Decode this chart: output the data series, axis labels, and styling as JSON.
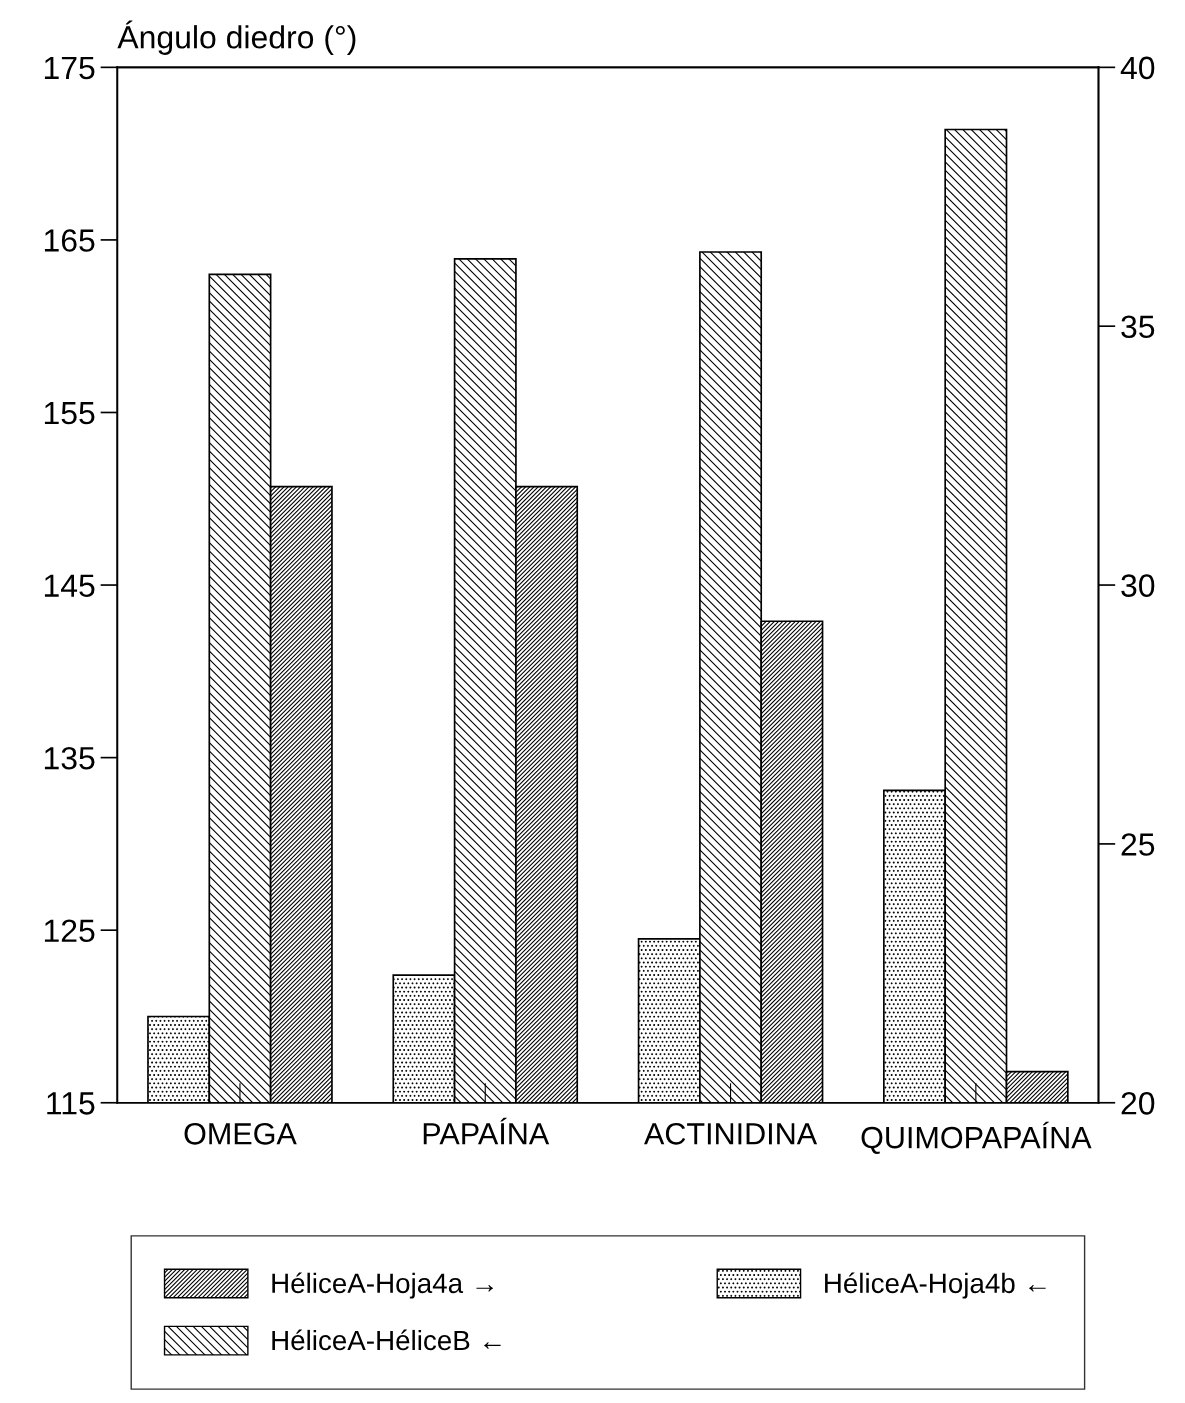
{
  "chart_data": {
    "type": "bar",
    "ylabel": "Ángulo diedro (°)",
    "categories": [
      "OMEGA",
      "PAPAÍNA",
      "ACTINIDINA",
      "QUIMOPAPAÍNA"
    ],
    "series": [
      {
        "name": "HéliceA-Hoja4b ←",
        "color": "#000000",
        "values": [
          120.0,
          122.4,
          124.5,
          133.1
        ]
      },
      {
        "name": "HéliceA-HéliceB ←",
        "color": "#000000",
        "values": [
          163.0,
          163.9,
          164.3,
          171.4
        ]
      },
      {
        "name": "HéliceA-Hoja4a →",
        "color": "#000000",
        "axis": "y2",
        "values": [
          31.9,
          31.9,
          29.3,
          20.6
        ]
      }
    ],
    "ylim": [
      115,
      175
    ],
    "yticks": [
      115,
      125,
      135,
      145,
      155,
      165,
      175
    ],
    "y2lim": [
      20,
      40
    ],
    "y2ticks": [
      20,
      25,
      30,
      35,
      40
    ],
    "grid": false,
    "legend": "bottom"
  }
}
